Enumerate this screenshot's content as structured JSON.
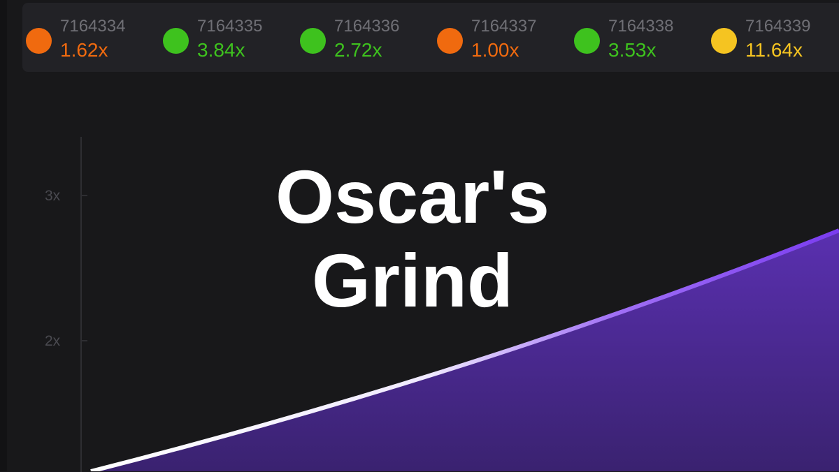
{
  "history": [
    {
      "round": "7164334",
      "multiplier": "1.62x",
      "color": "#f06a0f"
    },
    {
      "round": "7164335",
      "multiplier": "3.84x",
      "color": "#3ec21e"
    },
    {
      "round": "7164336",
      "multiplier": "2.72x",
      "color": "#3ec21e"
    },
    {
      "round": "7164337",
      "multiplier": "1.00x",
      "color": "#f06a0f"
    },
    {
      "round": "7164338",
      "multiplier": "3.53x",
      "color": "#3ec21e"
    },
    {
      "round": "7164339",
      "multiplier": "11.64x",
      "color": "#f5c421"
    }
  ],
  "axis": {
    "ticks": [
      "3x",
      "2x"
    ]
  },
  "overlay": {
    "line1": "Oscar's",
    "line2": "Grind"
  },
  "colors": {
    "curve_fill": "#4a2a8c",
    "curve_line": "#7a3cf0"
  }
}
